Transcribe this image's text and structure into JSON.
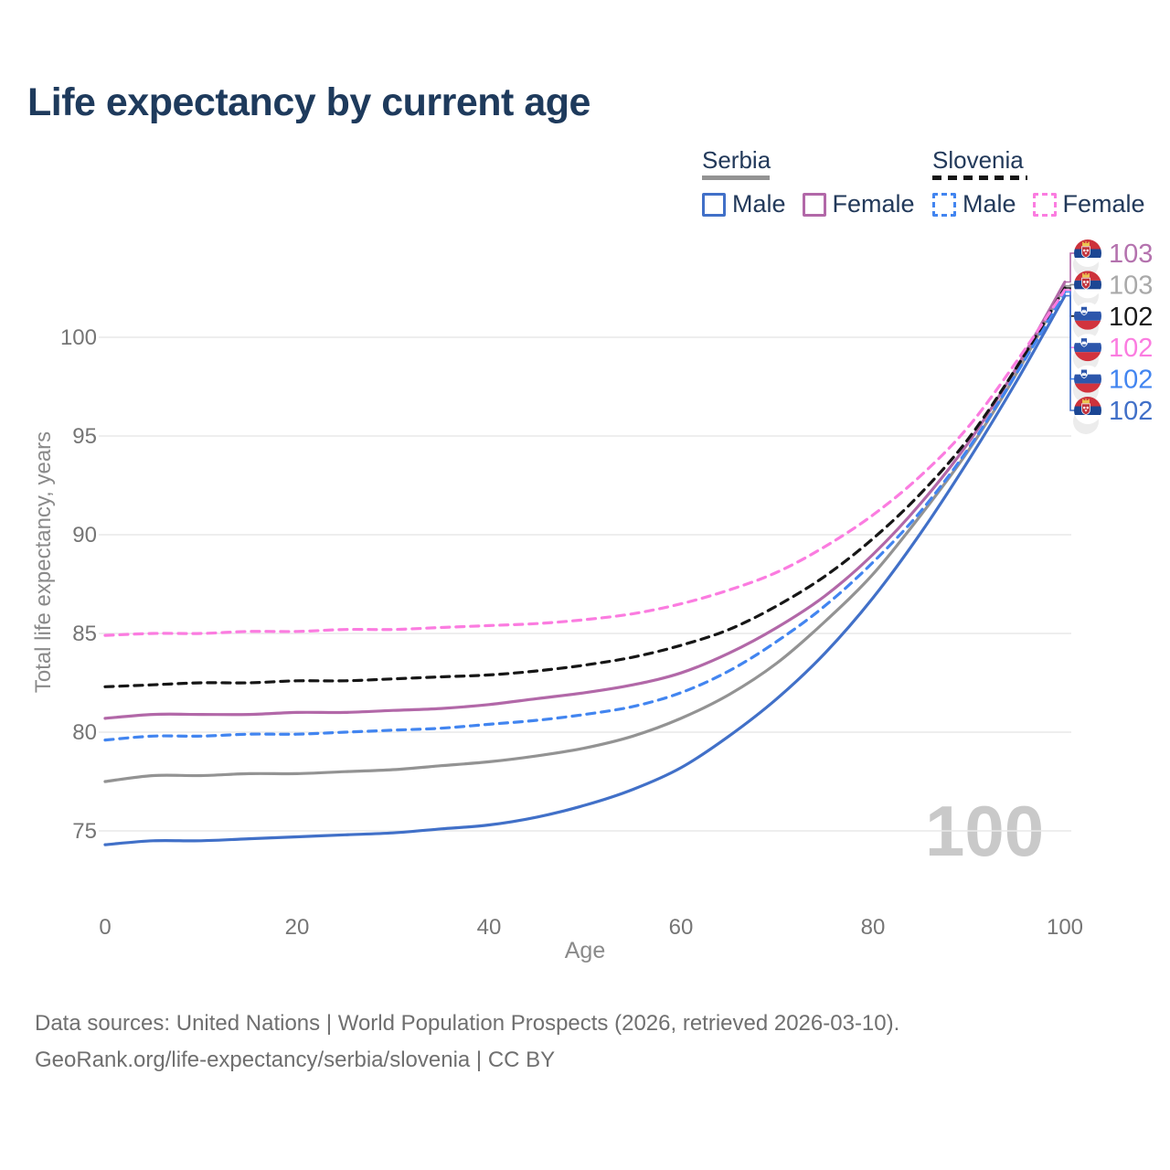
{
  "legend": {
    "serbia": {
      "label": "Serbia",
      "male_label": "Male",
      "female_label": "Female"
    },
    "slovenia": {
      "label": "Slovenia",
      "male_label": "Male",
      "female_label": "Female"
    }
  },
  "watermark": "100",
  "footer": {
    "line1": "Data sources: United Nations | World Population Prospects (2026, retrieved 2026-03-10).",
    "line2": "GeoRank.org/life-expectancy/serbia/slovenia | CC BY"
  },
  "chart_data": {
    "type": "line",
    "title": "Life expectancy by current age",
    "xlabel": "Age",
    "ylabel": "Total life expectancy, years",
    "xlim": [
      0,
      100
    ],
    "ylim": [
      73.5,
      103.5
    ],
    "x_ticks": [
      0,
      20,
      40,
      60,
      80,
      100
    ],
    "y_ticks": [
      75,
      80,
      85,
      90,
      95,
      100
    ],
    "grid": "horizontal",
    "legend_position": "top-right",
    "ages": [
      0,
      5,
      10,
      15,
      20,
      25,
      30,
      35,
      40,
      45,
      50,
      55,
      60,
      65,
      70,
      75,
      80,
      85,
      90,
      95,
      100
    ],
    "series": [
      {
        "key": "serbia_male",
        "name": "Serbia Male",
        "country": "serbia",
        "sex": "male",
        "color": "#4170c8",
        "dashed": false,
        "end_label": {
          "text": "102",
          "color": "#4170c8"
        },
        "values": [
          74.3,
          74.5,
          74.5,
          74.6,
          74.7,
          74.8,
          74.9,
          75.1,
          75.3,
          75.7,
          76.3,
          77.1,
          78.2,
          79.8,
          81.7,
          84.0,
          86.8,
          90.1,
          93.8,
          97.8,
          102.1
        ]
      },
      {
        "key": "serbia_both",
        "name": "Serbia",
        "country": "serbia",
        "sex": "both",
        "color": "#939393",
        "dashed": false,
        "end_label": {
          "text": "103",
          "color": "#a9a9a9"
        },
        "values": [
          77.5,
          77.8,
          77.8,
          77.9,
          77.9,
          78.0,
          78.1,
          78.3,
          78.5,
          78.8,
          79.2,
          79.8,
          80.7,
          81.9,
          83.5,
          85.6,
          88.0,
          91.0,
          94.3,
          98.2,
          102.6
        ]
      },
      {
        "key": "serbia_female",
        "name": "Serbia Female",
        "country": "serbia",
        "sex": "female",
        "color": "#b268a8",
        "dashed": false,
        "end_label": {
          "text": "103",
          "color": "#b472ae"
        },
        "values": [
          80.7,
          80.9,
          80.9,
          80.9,
          81.0,
          81.0,
          81.1,
          81.2,
          81.4,
          81.7,
          82.0,
          82.4,
          83.0,
          84.0,
          85.3,
          86.9,
          89.0,
          91.6,
          94.7,
          98.5,
          102.8
        ]
      },
      {
        "key": "slovenia_male",
        "name": "Slovenia Male",
        "country": "slovenia",
        "sex": "male",
        "color": "#4285f0",
        "dashed": true,
        "end_label": {
          "text": "102",
          "color": "#4285f0"
        },
        "values": [
          79.6,
          79.8,
          79.8,
          79.9,
          79.9,
          80.0,
          80.1,
          80.2,
          80.4,
          80.6,
          80.9,
          81.3,
          82.0,
          83.1,
          84.6,
          86.4,
          88.6,
          91.2,
          94.4,
          98.2,
          102.3
        ]
      },
      {
        "key": "slovenia_both",
        "name": "Slovenia",
        "country": "slovenia",
        "sex": "both",
        "color": "#161616",
        "dashed": true,
        "end_label": {
          "text": "102",
          "color": "#1a1a1a"
        },
        "values": [
          82.3,
          82.4,
          82.5,
          82.5,
          82.6,
          82.6,
          82.7,
          82.8,
          82.9,
          83.1,
          83.4,
          83.8,
          84.4,
          85.2,
          86.4,
          87.9,
          89.8,
          92.1,
          94.9,
          98.5,
          102.5
        ]
      },
      {
        "key": "slovenia_female",
        "name": "Slovenia Female",
        "country": "slovenia",
        "sex": "female",
        "color": "#fb7ce0",
        "dashed": true,
        "end_label": {
          "text": "102",
          "color": "#fb7ce0"
        },
        "values": [
          84.9,
          85.0,
          85.0,
          85.1,
          85.1,
          85.2,
          85.2,
          85.3,
          85.4,
          85.5,
          85.7,
          86.0,
          86.5,
          87.2,
          88.1,
          89.4,
          91.0,
          93.0,
          95.5,
          98.8,
          102.4
        ]
      }
    ]
  }
}
